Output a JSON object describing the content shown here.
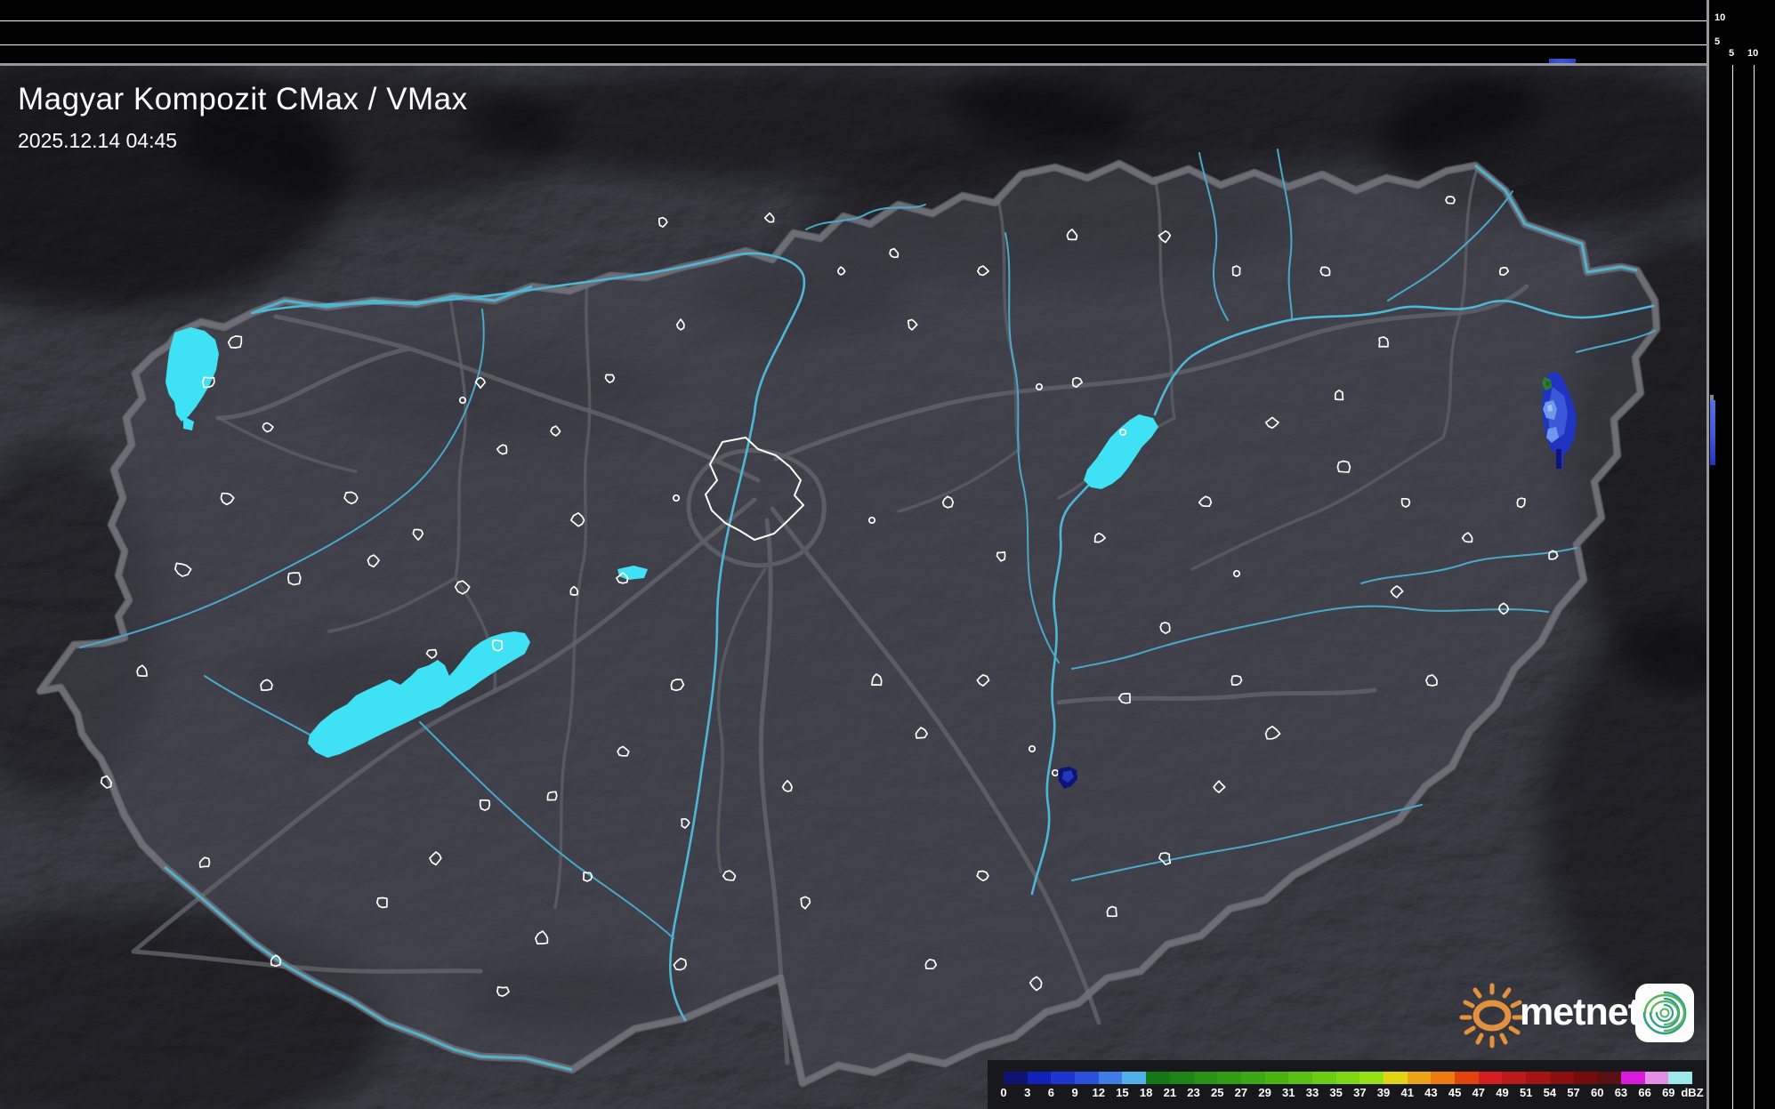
{
  "header": {
    "title": "Magyar Kompozit CMax / VMax",
    "timestamp": "2025.12.14 04:45"
  },
  "panels": {
    "top_ticks": [
      "10",
      "5"
    ],
    "right_ticks": [
      "5",
      "10"
    ]
  },
  "legend": {
    "unit": "dBZ",
    "boundaries": [
      "0",
      "3",
      "6",
      "9",
      "12",
      "15",
      "18",
      "21",
      "23",
      "25",
      "27",
      "29",
      "31",
      "33",
      "35",
      "37",
      "39",
      "41",
      "43",
      "45",
      "47",
      "49",
      "51",
      "54",
      "57",
      "60",
      "63",
      "66",
      "69"
    ],
    "colors": [
      "#0e1470",
      "#1321bb",
      "#1d36d2",
      "#2b51dd",
      "#3f7ce4",
      "#52b0e8",
      "#157815",
      "#1d8415",
      "#279015",
      "#319c14",
      "#3ca813",
      "#4ab413",
      "#5ac013",
      "#6ccc13",
      "#80d813",
      "#97e013",
      "#e0d414",
      "#eca414",
      "#ec7c10",
      "#e2440e",
      "#d42020",
      "#bc1a1a",
      "#a41414",
      "#8c1010",
      "#740c0c",
      "#581010",
      "#da1ada",
      "#e38fe3",
      "#9fe8ea"
    ]
  },
  "logo": {
    "text": "metnet"
  },
  "colors": {
    "lake": "#3fe2f4",
    "river": "#4aa9c9",
    "echo_blue": "#2134c0",
    "echo_green": "#2f7d32",
    "sun": "#e2923e",
    "app_icon_teal": "#2f9e8f",
    "app_icon_green": "#58b45c"
  }
}
